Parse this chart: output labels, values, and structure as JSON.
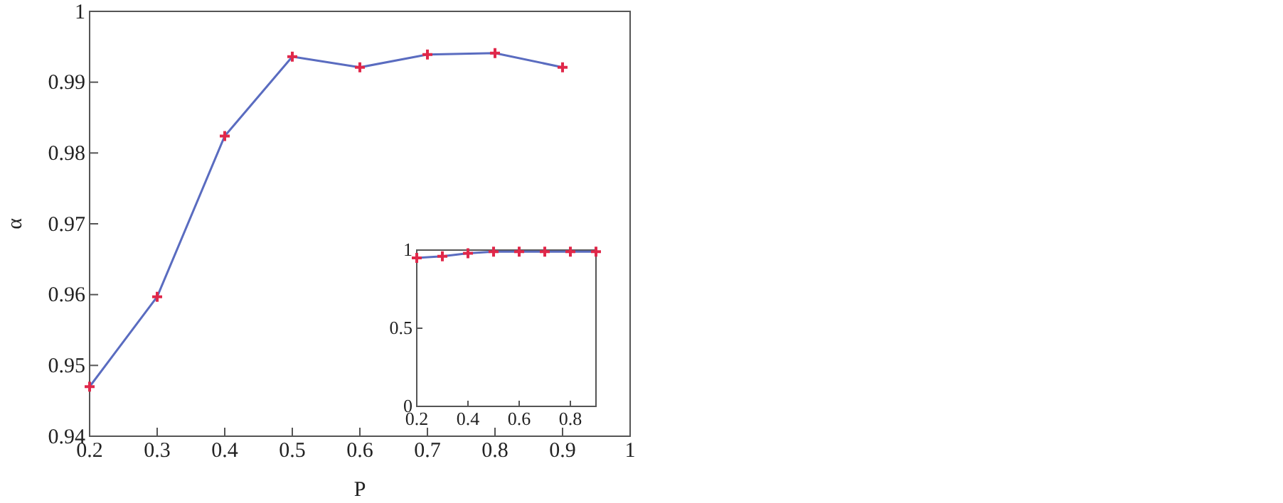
{
  "chart_data": [
    {
      "type": "line",
      "xlabel": "P",
      "ylabel": "α",
      "x": [
        0.2,
        0.3,
        0.4,
        0.5,
        0.6,
        0.7,
        0.8,
        0.9
      ],
      "series": [
        {
          "color": "#5a6cc0",
          "marker": "none",
          "values": [
            0.947,
            0.9597,
            0.9824,
            0.9936,
            0.9921,
            0.9939,
            0.9941,
            0.9921
          ]
        },
        {
          "type": "scatter",
          "color": "#e0284a",
          "marker": "cross",
          "values": [
            0.947,
            0.9597,
            0.9824,
            0.9936,
            0.9921,
            0.9939,
            0.9941,
            0.9921
          ]
        }
      ],
      "xlim": [
        0.2,
        1
      ],
      "xticks": [
        0.2,
        0.3,
        0.4,
        0.5,
        0.6,
        0.7,
        0.8,
        0.9,
        1
      ],
      "ylim": [
        0.94,
        1
      ],
      "yticks": [
        0.94,
        0.95,
        0.96,
        0.97,
        0.98,
        0.99,
        1
      ],
      "grid": false
    },
    {
      "type": "line",
      "x": [
        0.2,
        0.3,
        0.4,
        0.5,
        0.6,
        0.7,
        0.8,
        0.9
      ],
      "series": [
        {
          "color": "#5a6cc0",
          "marker": "none",
          "values": [
            0.95,
            0.96,
            0.98,
            0.99,
            0.99,
            0.99,
            0.99,
            0.99
          ]
        },
        {
          "type": "scatter",
          "color": "#e0284a",
          "marker": "cross",
          "values": [
            0.95,
            0.96,
            0.98,
            0.99,
            0.99,
            0.99,
            0.99,
            0.99
          ]
        }
      ],
      "xlim": [
        0.2,
        0.9
      ],
      "xticks": [
        0.2,
        0.4,
        0.6,
        0.8
      ],
      "ylim": [
        0,
        1
      ],
      "yticks": [
        0,
        0.5,
        1
      ],
      "grid": false
    }
  ]
}
